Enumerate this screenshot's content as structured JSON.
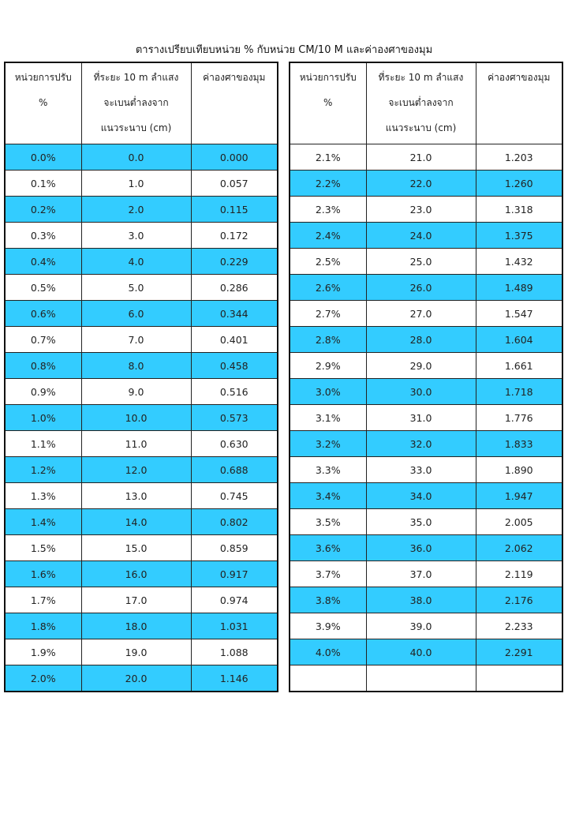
{
  "title": "ตารางเปรียบเทียบหน่วย % กับหน่วย CM/10 M และค่าองศาของมุม",
  "headers": {
    "col1": [
      "หน่วยการปรับ",
      "%"
    ],
    "col2": [
      "ที่ระยะ 10 m ลำแสง",
      "จะเบนต่ำลงจาก",
      "แนวระนาบ (cm)"
    ],
    "col3": [
      "ค่าองศาของมุม"
    ]
  },
  "highlight_color": "#33ccff",
  "left_rows": [
    [
      "0.0%",
      "0.0",
      "0.000"
    ],
    [
      "0.1%",
      "1.0",
      "0.057"
    ],
    [
      "0.2%",
      "2.0",
      "0.115"
    ],
    [
      "0.3%",
      "3.0",
      "0.172"
    ],
    [
      "0.4%",
      "4.0",
      "0.229"
    ],
    [
      "0.5%",
      "5.0",
      "0.286"
    ],
    [
      "0.6%",
      "6.0",
      "0.344"
    ],
    [
      "0.7%",
      "7.0",
      "0.401"
    ],
    [
      "0.8%",
      "8.0",
      "0.458"
    ],
    [
      "0.9%",
      "9.0",
      "0.516"
    ],
    [
      "1.0%",
      "10.0",
      "0.573"
    ],
    [
      "1.1%",
      "11.0",
      "0.630"
    ],
    [
      "1.2%",
      "12.0",
      "0.688"
    ],
    [
      "1.3%",
      "13.0",
      "0.745"
    ],
    [
      "1.4%",
      "14.0",
      "0.802"
    ],
    [
      "1.5%",
      "15.0",
      "0.859"
    ],
    [
      "1.6%",
      "16.0",
      "0.917"
    ],
    [
      "1.7%",
      "17.0",
      "0.974"
    ],
    [
      "1.8%",
      "18.0",
      "1.031"
    ],
    [
      "1.9%",
      "19.0",
      "1.088"
    ],
    [
      "2.0%",
      "20.0",
      "1.146"
    ]
  ],
  "left_highlighted": [
    true,
    false,
    true,
    false,
    true,
    false,
    true,
    false,
    true,
    false,
    true,
    false,
    true,
    false,
    true,
    false,
    true,
    false,
    true,
    false,
    true
  ],
  "right_rows": [
    [
      "2.1%",
      "21.0",
      "1.203"
    ],
    [
      "2.2%",
      "22.0",
      "1.260"
    ],
    [
      "2.3%",
      "23.0",
      "1.318"
    ],
    [
      "2.4%",
      "24.0",
      "1.375"
    ],
    [
      "2.5%",
      "25.0",
      "1.432"
    ],
    [
      "2.6%",
      "26.0",
      "1.489"
    ],
    [
      "2.7%",
      "27.0",
      "1.547"
    ],
    [
      "2.8%",
      "28.0",
      "1.604"
    ],
    [
      "2.9%",
      "29.0",
      "1.661"
    ],
    [
      "3.0%",
      "30.0",
      "1.718"
    ],
    [
      "3.1%",
      "31.0",
      "1.776"
    ],
    [
      "3.2%",
      "32.0",
      "1.833"
    ],
    [
      "3.3%",
      "33.0",
      "1.890"
    ],
    [
      "3.4%",
      "34.0",
      "1.947"
    ],
    [
      "3.5%",
      "35.0",
      "2.005"
    ],
    [
      "3.6%",
      "36.0",
      "2.062"
    ],
    [
      "3.7%",
      "37.0",
      "2.119"
    ],
    [
      "3.8%",
      "38.0",
      "2.176"
    ],
    [
      "3.9%",
      "39.0",
      "2.233"
    ],
    [
      "4.0%",
      "40.0",
      "2.291"
    ],
    [
      "",
      "",
      ""
    ]
  ],
  "right_highlighted": [
    false,
    true,
    false,
    true,
    false,
    true,
    false,
    true,
    false,
    true,
    false,
    true,
    false,
    true,
    false,
    true,
    false,
    true,
    false,
    true,
    false
  ]
}
